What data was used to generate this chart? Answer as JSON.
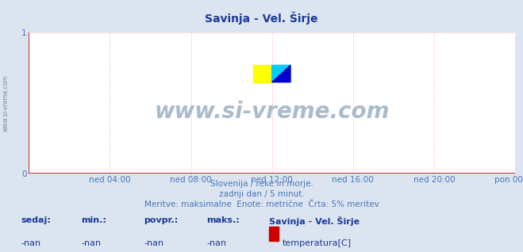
{
  "title": "Savinja - Vel. Širje",
  "title_color": "#1a3a9a",
  "title_fontsize": 10,
  "bg_color": "#dce4f0",
  "plot_bg_color": "#ffffff",
  "grid_color": "#ff8888",
  "axis_color": "#cc0000",
  "x_tick_labels": [
    "ned 04:00",
    "ned 08:00",
    "ned 12:00",
    "ned 16:00",
    "ned 20:00",
    "pon 00:00"
  ],
  "x_tick_positions": [
    0.1667,
    0.3333,
    0.5,
    0.6667,
    0.8333,
    1.0
  ],
  "y_tick_labels": [
    "0",
    "1"
  ],
  "y_tick_positions": [
    0,
    1
  ],
  "ylim": [
    0,
    1
  ],
  "xlim": [
    0,
    1
  ],
  "ylabel_left": "www.si-vreme.com",
  "ylabel_left_color": "#7788aa",
  "sub_text1": "Slovenija / reke in morje.",
  "sub_text2": "zadnji dan / 5 minut.",
  "sub_text3": "Meritve: maksimalne  Enote: metrične  Črta: 5% meritev",
  "sub_text_color": "#4477bb",
  "sub_fontsize": 7.5,
  "footer_labels": [
    "sedaj:",
    "min.:",
    "povpr.:",
    "maks.:"
  ],
  "footer_values": [
    "-nan",
    "-nan",
    "-nan",
    "-nan"
  ],
  "footer_color": "#1a3a9a",
  "legend_title": "Savinja - Vel. Širje",
  "legend_entry": "temperatura[C]",
  "legend_color": "#cc0000",
  "watermark_text": "www.si-vreme.com",
  "watermark_color": "#aabccc",
  "tick_label_color": "#4477bb",
  "tick_fontsize": 7.5,
  "grid_linewidth": 0.5,
  "grid_linestyle": ":"
}
